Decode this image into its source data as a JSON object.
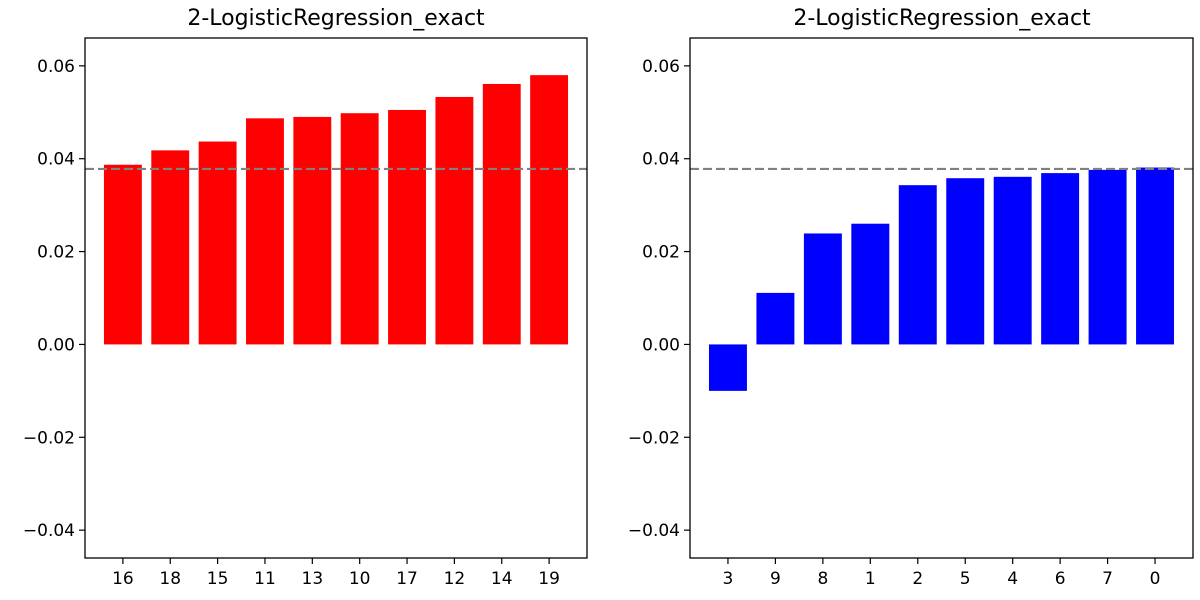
{
  "chart_data": [
    {
      "type": "bar",
      "title": "2-LogisticRegression_exact",
      "xlabel": "",
      "ylabel": "",
      "categories": [
        "16",
        "18",
        "15",
        "11",
        "13",
        "10",
        "17",
        "12",
        "14",
        "19"
      ],
      "values": [
        0.0387,
        0.0418,
        0.0437,
        0.0487,
        0.049,
        0.0498,
        0.0505,
        0.0533,
        0.0561,
        0.058
      ],
      "bar_color": "#ff0000",
      "ylim": [
        -0.046,
        0.066
      ],
      "yticks": [
        -0.04,
        -0.02,
        0.0,
        0.02,
        0.04,
        0.06
      ],
      "ytick_labels": [
        "−0.04",
        "−0.02",
        "0.00",
        "0.02",
        "0.04",
        "0.06"
      ],
      "reference_line": {
        "value": 0.0378,
        "color": "#808080",
        "style": "dashed"
      },
      "grid": false
    },
    {
      "type": "bar",
      "title": "2-LogisticRegression_exact",
      "xlabel": "",
      "ylabel": "",
      "categories": [
        "3",
        "9",
        "8",
        "1",
        "2",
        "5",
        "4",
        "6",
        "7",
        "0"
      ],
      "values": [
        -0.01,
        0.0111,
        0.0239,
        0.026,
        0.0343,
        0.0358,
        0.0361,
        0.0369,
        0.0376,
        0.0381
      ],
      "bar_color": "#0000ff",
      "ylim": [
        -0.046,
        0.066
      ],
      "yticks": [
        -0.04,
        -0.02,
        0.0,
        0.02,
        0.04,
        0.06
      ],
      "ytick_labels": [
        "−0.04",
        "−0.02",
        "0.00",
        "0.02",
        "0.04",
        "0.06"
      ],
      "reference_line": {
        "value": 0.0378,
        "color": "#808080",
        "style": "dashed"
      },
      "grid": false
    }
  ]
}
